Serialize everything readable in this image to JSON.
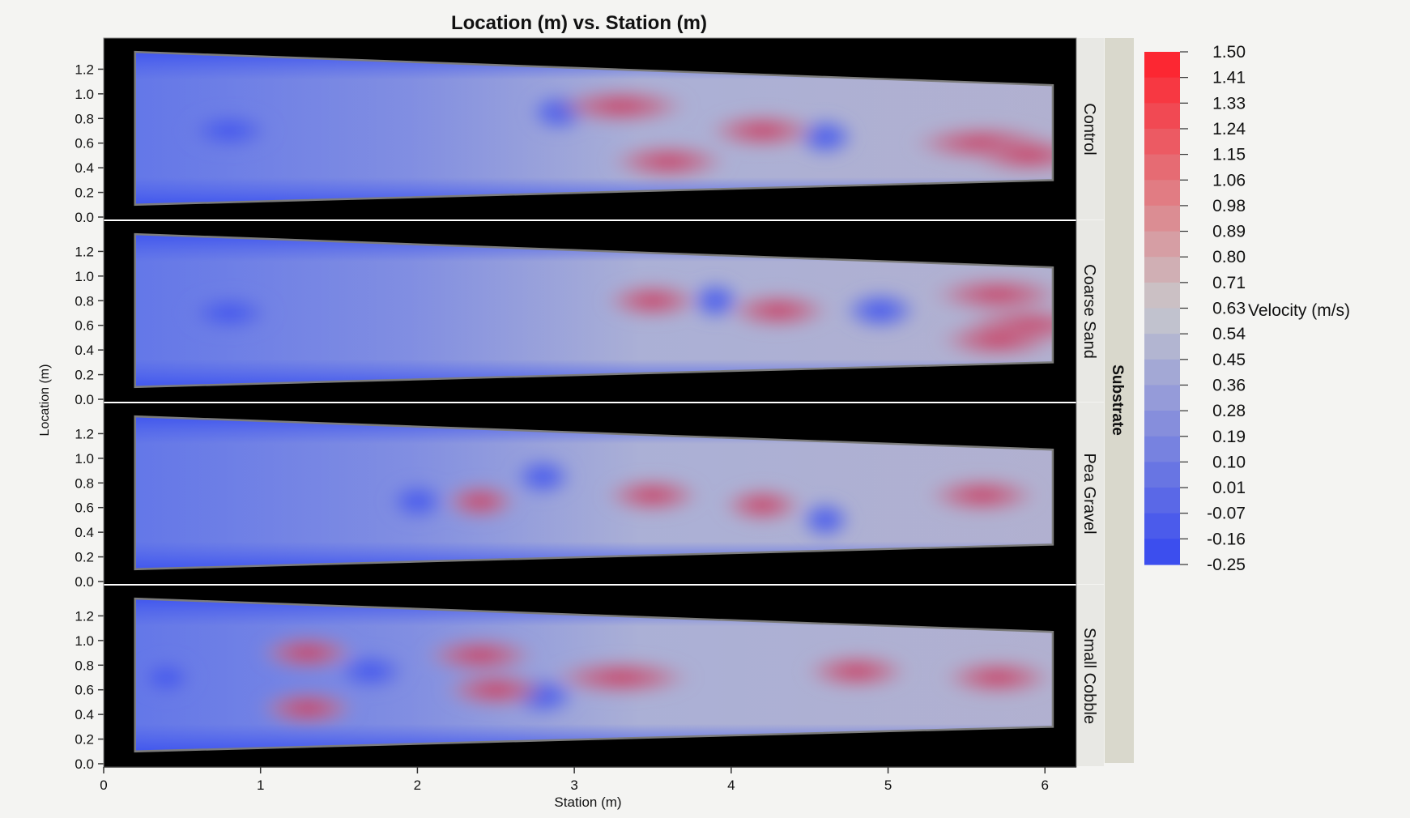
{
  "chart_data": {
    "type": "heatmap",
    "title": "Location (m) vs. Station (m)",
    "xlabel": "Station (m)",
    "ylabel": "Location (m)",
    "xlim": [
      0,
      6.2
    ],
    "ylim": [
      0,
      1.4
    ],
    "x_ticks": [
      "0",
      "1",
      "2",
      "3",
      "4",
      "5",
      "6"
    ],
    "y_ticks": [
      "0.0",
      "0.2",
      "0.4",
      "0.6",
      "0.8",
      "1.0",
      "1.2"
    ],
    "group_label": "Substrate",
    "channel_outline": {
      "x_start": 0.2,
      "x_end": 6.05,
      "y_bottom_start": 0.1,
      "y_top_start": 1.34,
      "y_bottom_end": 0.3,
      "y_top_end": 1.07
    },
    "panels": [
      {
        "name": "Control",
        "hot_spots": [
          [
            3.3,
            0.9,
            0.7
          ],
          [
            3.6,
            0.45,
            0.6
          ],
          [
            4.2,
            0.7,
            0.55
          ],
          [
            5.6,
            0.6,
            0.75
          ],
          [
            5.9,
            0.5,
            0.6
          ]
        ],
        "cold_spots": [
          [
            0.8,
            0.7,
            0.4
          ],
          [
            4.6,
            0.65,
            0.2
          ],
          [
            2.9,
            0.85,
            0.2
          ]
        ]
      },
      {
        "name": "Coarse Sand",
        "hot_spots": [
          [
            3.5,
            0.8,
            0.45
          ],
          [
            4.3,
            0.72,
            0.5
          ],
          [
            5.7,
            0.85,
            0.7
          ],
          [
            5.9,
            0.6,
            0.7
          ],
          [
            5.7,
            0.48,
            0.6
          ]
        ],
        "cold_spots": [
          [
            0.8,
            0.7,
            0.4
          ],
          [
            4.95,
            0.72,
            0.3
          ],
          [
            3.9,
            0.8,
            0.15
          ]
        ]
      },
      {
        "name": "Pea Gravel",
        "hot_spots": [
          [
            3.5,
            0.7,
            0.45
          ],
          [
            4.2,
            0.62,
            0.35
          ],
          [
            5.6,
            0.7,
            0.55
          ],
          [
            2.4,
            0.65,
            0.3
          ]
        ],
        "cold_spots": [
          [
            2.0,
            0.65,
            0.2
          ],
          [
            2.8,
            0.85,
            0.2
          ],
          [
            4.6,
            0.5,
            0.15
          ]
        ]
      },
      {
        "name": "Small Cobble",
        "hot_spots": [
          [
            1.3,
            0.9,
            0.45
          ],
          [
            1.3,
            0.45,
            0.45
          ],
          [
            2.4,
            0.88,
            0.55
          ],
          [
            2.5,
            0.6,
            0.5
          ],
          [
            3.3,
            0.7,
            0.75
          ],
          [
            4.8,
            0.75,
            0.5
          ],
          [
            5.7,
            0.7,
            0.55
          ]
        ],
        "cold_spots": [
          [
            1.7,
            0.75,
            0.3
          ],
          [
            2.8,
            0.55,
            0.25
          ],
          [
            0.4,
            0.7,
            0.2
          ]
        ]
      }
    ],
    "colorbar": {
      "label": "Velocity (m/s)",
      "min": -0.25,
      "max": 1.5,
      "ticks": [
        "1.50",
        "1.41",
        "1.33",
        "1.24",
        "1.15",
        "1.06",
        "0.98",
        "0.89",
        "0.80",
        "0.71",
        "0.63",
        "0.54",
        "0.45",
        "0.36",
        "0.28",
        "0.19",
        "0.10",
        "0.01",
        "-0.07",
        "-0.16",
        "-0.25"
      ],
      "color_low": "#3548f0",
      "color_mid": "#c8c8cc",
      "color_high": "#ff1f2a"
    },
    "colors": {
      "background": "#000000",
      "facet_strip": "#e8e8e4",
      "group_strip": "#d9d8cc"
    }
  }
}
